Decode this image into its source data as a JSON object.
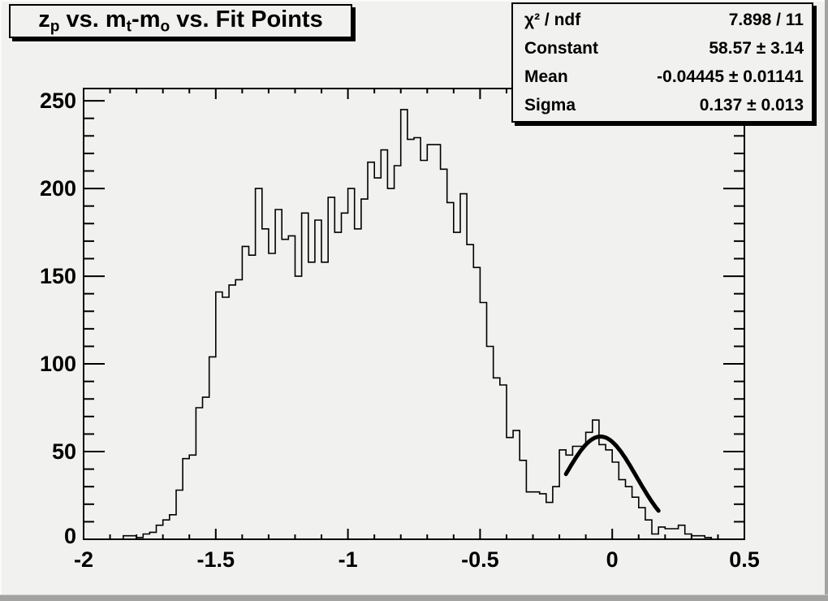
{
  "colors": {
    "canvas_background": "#f1f1ef",
    "line_color": "#000000",
    "fit_color": "#000000",
    "text_color": "#000000"
  },
  "title": {
    "plain": "z_p vs. m_t-m_o vs. Fit Points",
    "segments": [
      {
        "text": "z",
        "sub": "p"
      },
      {
        "text": " vs. m",
        "sub": "t"
      },
      {
        "text": "-m",
        "sub": "o"
      },
      {
        "text": " vs. Fit Points",
        "sub": ""
      }
    ]
  },
  "stats": {
    "rows": [
      {
        "label": "χ² / ndf",
        "value": "7.898 / 11"
      },
      {
        "label": "Constant",
        "value": "58.57 ± 3.14"
      },
      {
        "label": "Mean",
        "value": "-0.04445 ± 0.01141"
      },
      {
        "label": "Sigma",
        "value": "0.137 ± 0.013"
      }
    ]
  },
  "chart_data": {
    "type": "bar",
    "subtype": "step-histogram-with-gaussian-fit",
    "title": "z_p vs. m_t-m_o vs. Fit Points",
    "xlabel": "",
    "ylabel": "",
    "x_range": [
      -2,
      0.5
    ],
    "y_max": 257,
    "bin_width": 0.025,
    "first_bin_edge": -2,
    "x_ticks": [
      "-2",
      "-1.5",
      "-1",
      "-0.5",
      "0",
      "0.5"
    ],
    "x_tick_values": [
      -2,
      -1.5,
      -1,
      -0.5,
      0,
      0.5
    ],
    "x_minor_step": 0.1,
    "y_ticks": [
      "0",
      "50",
      "100",
      "150",
      "200",
      "250"
    ],
    "y_tick_values": [
      0,
      50,
      100,
      150,
      200,
      250
    ],
    "y_minor_step": 10,
    "grid": false,
    "values": [
      0,
      0,
      0,
      0,
      0,
      0,
      2,
      2,
      1,
      3,
      4,
      8,
      11,
      14,
      28,
      46,
      48,
      75,
      81,
      104,
      141,
      138,
      145,
      148,
      167,
      162,
      200,
      177,
      163,
      188,
      171,
      173,
      150,
      186,
      158,
      182,
      158,
      195,
      175,
      186,
      200,
      177,
      194,
      215,
      206,
      222,
      200,
      213,
      245,
      228,
      229,
      216,
      225,
      225,
      211,
      192,
      175,
      197,
      168,
      155,
      135,
      110,
      92,
      88,
      58,
      62,
      45,
      27,
      27,
      26,
      21,
      30,
      51,
      48,
      53,
      53,
      61,
      68,
      54,
      51,
      44,
      34,
      30,
      24,
      18,
      11,
      3,
      7,
      6,
      6,
      8,
      3,
      2,
      2,
      1,
      0,
      0,
      0,
      0,
      0
    ],
    "fit": {
      "type": "gaussian",
      "constant": 58.57,
      "constant_error": 3.14,
      "mean": -0.04445,
      "mean_error": 0.01141,
      "sigma": 0.137,
      "sigma_error": 0.013,
      "chi2": 7.898,
      "ndf": 11,
      "draw_range": [
        -0.175,
        0.175
      ]
    }
  }
}
